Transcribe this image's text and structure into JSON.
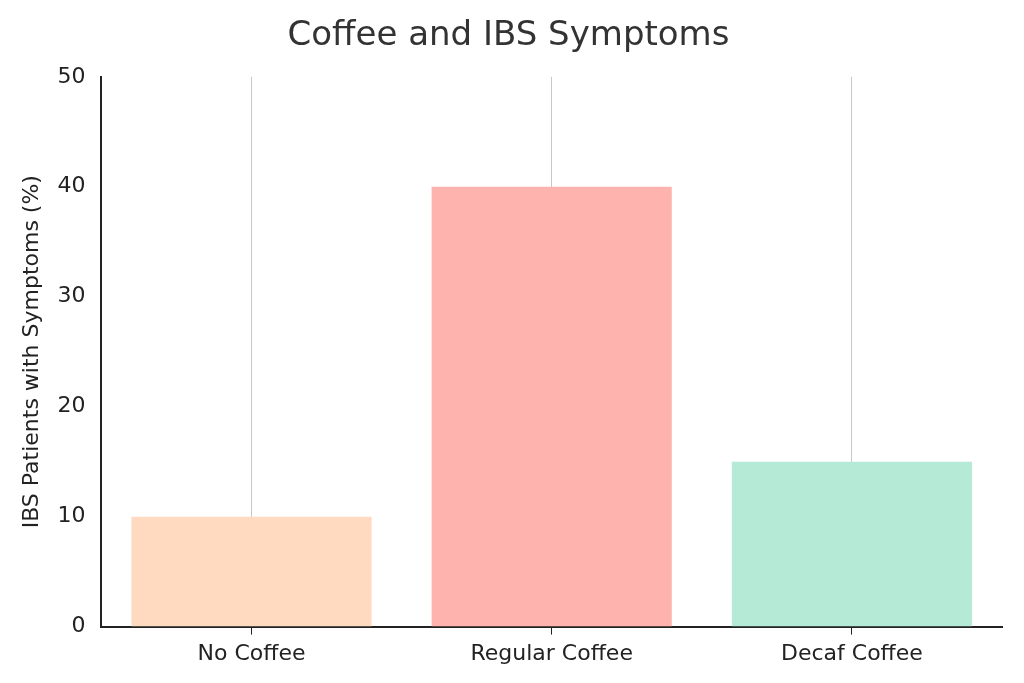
{
  "chart_data": {
    "type": "bar",
    "title": "Coffee and IBS Symptoms",
    "ylabel": "IBS Patients with Symptoms (%)",
    "categories": [
      "No Coffee",
      "Regular Coffee",
      "Decaf Coffee"
    ],
    "values": [
      10,
      40,
      15
    ],
    "colors": [
      "#ffdac1",
      "#ffb3ae",
      "#b5ead7"
    ],
    "ylim": [
      0,
      50
    ],
    "yticks": [
      0,
      10,
      20,
      30,
      40,
      50
    ],
    "grid": "x",
    "legend": false
  }
}
